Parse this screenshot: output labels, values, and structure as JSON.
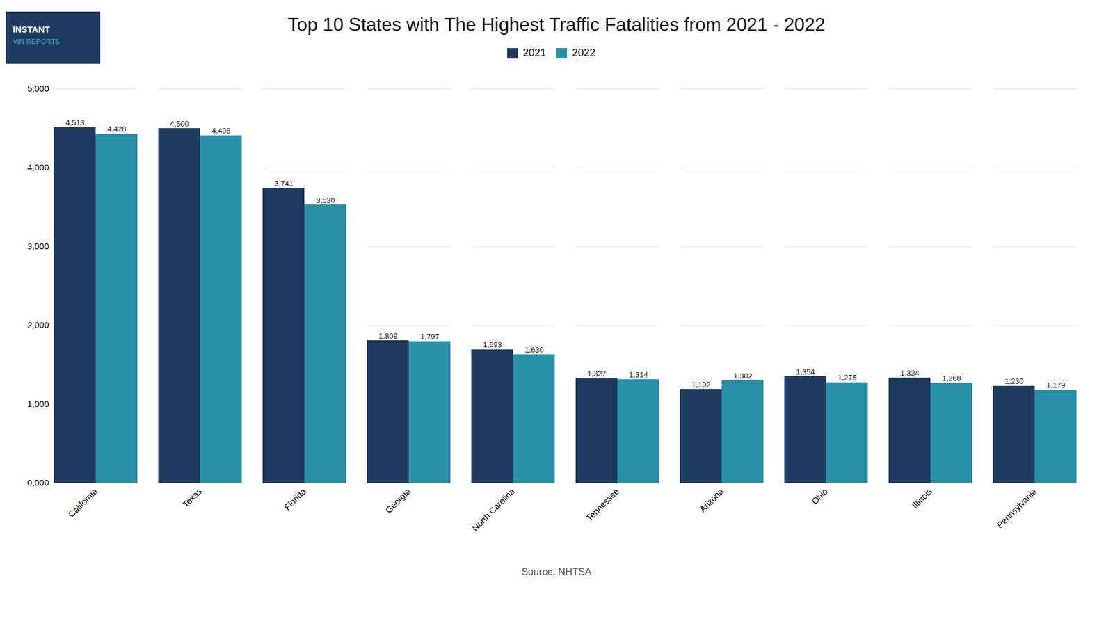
{
  "chart_data": {
    "type": "bar",
    "title": "Top 10 States with The Highest Traffic Fatalities from 2021 - 2022",
    "source": "Source: NHTSA",
    "annotations": [
      "INSTANT",
      "VIN REPORTS"
    ],
    "categories": [
      "California",
      "Texas",
      "Florida",
      "Georgia",
      "North Carolina",
      "Tennessee",
      "Arizona",
      "Ohio",
      "Illinois",
      "Pennsylvania"
    ],
    "series": [
      {
        "name": "2021",
        "color": "#1e3a5f",
        "values": [
          4513,
          4500,
          3741,
          1809,
          1693,
          1327,
          1192,
          1354,
          1334,
          1230
        ],
        "value_labels": [
          "4,513",
          "4,500",
          "3,741",
          "1,809",
          "1,693",
          "1,327",
          "1,192",
          "1,354",
          "1,334",
          "1,230"
        ]
      },
      {
        "name": "2022",
        "color": "#2a8fa8",
        "values": [
          4428,
          4408,
          3530,
          1797,
          1630,
          1314,
          1302,
          1275,
          1268,
          1179
        ],
        "value_labels": [
          "4,428",
          "4,408",
          "3,530",
          "1,797",
          "1,630",
          "1,314",
          "1,302",
          "1,275",
          "1,268",
          "1,179"
        ]
      }
    ],
    "ylim": [
      0,
      5000
    ],
    "yticks": [
      {
        "value": 0,
        "label": "0,000"
      },
      {
        "value": 1000,
        "label": "1,000"
      },
      {
        "value": 2000,
        "label": "2,000"
      },
      {
        "value": 3000,
        "label": "3,000"
      },
      {
        "value": 4000,
        "label": "4,000"
      },
      {
        "value": 5000,
        "label": "5,000"
      }
    ],
    "grid": true,
    "legend": "top",
    "data_labels": true
  }
}
